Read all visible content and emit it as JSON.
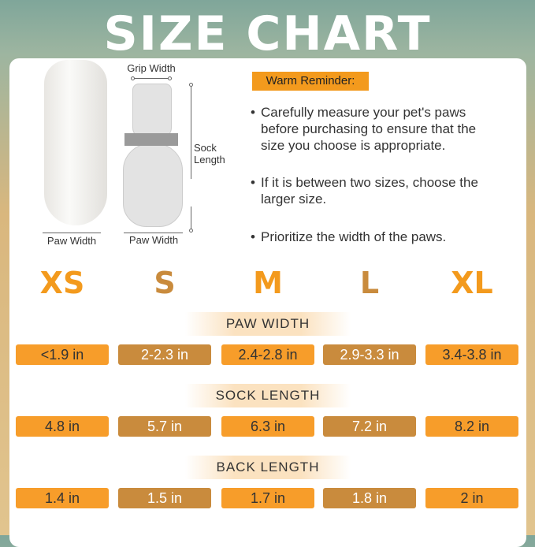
{
  "title": "SIZE CHART",
  "diagram": {
    "grip_width": "Grip Width",
    "sock_length": "Sock Length",
    "paw_width_left": "Paw Width",
    "paw_width_right": "Paw Width"
  },
  "reminder": {
    "label": "Warm Reminder:",
    "bullets": [
      "Carefully measure your pet's paws before purchasing to ensure that the size you choose is appropriate.",
      "If it is between two sizes, choose the larger size.",
      "Prioritize the width of the paws."
    ]
  },
  "colors": {
    "bright_orange": "#f79d2a",
    "dark_orange": "#c98b3d"
  },
  "sizes": [
    "XS",
    "S",
    "M",
    "L",
    "XL"
  ],
  "rows": [
    {
      "header": "PAW WIDTH",
      "values": [
        "<1.9 in",
        "2-2.3 in",
        "2.4-2.8 in",
        "2.9-3.3 in",
        "3.4-3.8 in"
      ]
    },
    {
      "header": "SOCK LENGTH",
      "values": [
        "4.8 in",
        "5.7 in",
        "6.3 in",
        "7.2 in",
        "8.2 in"
      ]
    },
    {
      "header": "BACK LENGTH",
      "values": [
        "1.4 in",
        "1.5 in",
        "1.7 in",
        "1.8 in",
        "2 in"
      ]
    }
  ]
}
